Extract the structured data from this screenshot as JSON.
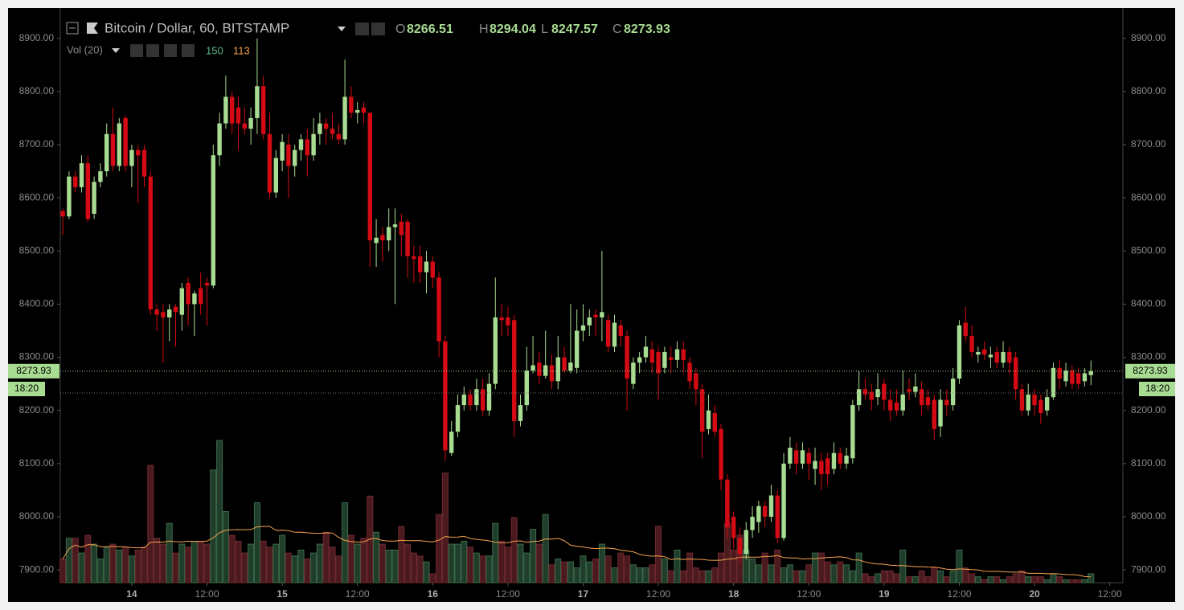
{
  "chart_data": {
    "type": "candlestick",
    "title": "Bitcoin / Dollar, 60, BITSTAMP",
    "ohlc_labels": [
      "O",
      "H",
      "L",
      "C"
    ],
    "volume_title": "Vol (20)",
    "volume_ma": 113,
    "countdown": "18:20",
    "up_color": "#a9dc93",
    "down_color": "#d40a14",
    "ma_color": "#f6a04d",
    "ylim": [
      7876,
      8954
    ],
    "yticks": [
      {
        "value": 7900,
        "label": "7900.00"
      },
      {
        "value": 8000,
        "label": "8000.00"
      },
      {
        "value": 8100,
        "label": "8100.00"
      },
      {
        "value": 8200,
        "label": "8200.00"
      },
      {
        "value": 8300,
        "label": "8300.00"
      },
      {
        "value": 8400,
        "label": "8400.00"
      },
      {
        "value": 8500,
        "label": "8500.00"
      },
      {
        "value": 8600,
        "label": "8600.00"
      },
      {
        "value": 8700,
        "label": "8700.00"
      },
      {
        "value": 8800,
        "label": "8800.00"
      },
      {
        "value": 8900,
        "label": "8900.00"
      }
    ],
    "xlim": [
      -0.4,
      169.1
    ],
    "xticks": [
      {
        "value": 11,
        "label": "14"
      },
      {
        "value": 23,
        "label": "12:00"
      },
      {
        "value": 35,
        "label": "15"
      },
      {
        "value": 47,
        "label": "12:00"
      },
      {
        "value": 59,
        "label": "16"
      },
      {
        "value": 71,
        "label": "12:00"
      },
      {
        "value": 83,
        "label": "17"
      },
      {
        "value": 95,
        "label": "12:00"
      },
      {
        "value": 107,
        "label": "18"
      },
      {
        "value": 119,
        "label": "12:00"
      },
      {
        "value": 131,
        "label": "19"
      },
      {
        "value": 143,
        "label": "12:00"
      },
      {
        "value": 155,
        "label": "20"
      },
      {
        "value": 167,
        "label": "12:00"
      }
    ],
    "ohlc": [
      [
        8575,
        8580,
        8530,
        8565
      ],
      [
        8565,
        8650,
        8560,
        8640
      ],
      [
        8640,
        8650,
        8610,
        8620
      ],
      [
        8620,
        8680,
        8610,
        8665
      ],
      [
        8665,
        8680,
        8555,
        8560
      ],
      [
        8570,
        8640,
        8560,
        8630
      ],
      [
        8630,
        8665,
        8620,
        8650
      ],
      [
        8650,
        8740,
        8640,
        8720
      ],
      [
        8720,
        8770,
        8650,
        8660
      ],
      [
        8660,
        8750,
        8650,
        8740
      ],
      [
        8750,
        8755,
        8650,
        8660
      ],
      [
        8660,
        8700,
        8620,
        8690
      ],
      [
        8690,
        8700,
        8590,
        8680
      ],
      [
        8690,
        8700,
        8620,
        8640
      ],
      [
        8640,
        8650,
        8380,
        8390
      ],
      [
        8390,
        8400,
        8350,
        8380
      ],
      [
        8385,
        8400,
        8290,
        8375
      ],
      [
        8375,
        8400,
        8330,
        8390
      ],
      [
        8395,
        8400,
        8320,
        8385
      ],
      [
        8380,
        8440,
        8350,
        8430
      ],
      [
        8440,
        8450,
        8360,
        8400
      ],
      [
        8400,
        8425,
        8340,
        8420
      ],
      [
        8430,
        8460,
        8380,
        8400
      ],
      [
        8440,
        8450,
        8360,
        8435
      ],
      [
        8435,
        8700,
        8430,
        8680
      ],
      [
        8680,
        8760,
        8660,
        8740
      ],
      [
        8740,
        8830,
        8730,
        8790
      ],
      [
        8790,
        8800,
        8720,
        8740
      ],
      [
        8770,
        8790,
        8690,
        8740
      ],
      [
        8740,
        8770,
        8720,
        8730
      ],
      [
        8730,
        8770,
        8700,
        8750
      ],
      [
        8750,
        8900,
        8720,
        8810
      ],
      [
        8810,
        8830,
        8710,
        8720
      ],
      [
        8720,
        8760,
        8600,
        8610
      ],
      [
        8610,
        8690,
        8600,
        8675
      ],
      [
        8670,
        8720,
        8650,
        8705
      ],
      [
        8700,
        8720,
        8600,
        8660
      ],
      [
        8660,
        8700,
        8640,
        8690
      ],
      [
        8690,
        8720,
        8670,
        8710
      ],
      [
        8710,
        8730,
        8640,
        8680
      ],
      [
        8680,
        8750,
        8670,
        8720
      ],
      [
        8720,
        8760,
        8700,
        8740
      ],
      [
        8740,
        8750,
        8700,
        8730
      ],
      [
        8730,
        8760,
        8710,
        8720
      ],
      [
        8720,
        8740,
        8700,
        8710
      ],
      [
        8710,
        8860,
        8700,
        8790
      ],
      [
        8790,
        8810,
        8750,
        8760
      ],
      [
        8760,
        8780,
        8740,
        8765
      ],
      [
        8770,
        8780,
        8740,
        8760
      ],
      [
        8760,
        8760,
        8470,
        8520
      ],
      [
        8515,
        8560,
        8470,
        8525
      ],
      [
        8530,
        8545,
        8480,
        8520
      ],
      [
        8520,
        8580,
        8500,
        8545
      ],
      [
        8545,
        8580,
        8400,
        8550
      ],
      [
        8555,
        8570,
        8490,
        8530
      ],
      [
        8555,
        8560,
        8450,
        8490
      ],
      [
        8490,
        8510,
        8440,
        8485
      ],
      [
        8490,
        8510,
        8440,
        8460
      ],
      [
        8460,
        8500,
        8420,
        8480
      ],
      [
        8480,
        8490,
        8430,
        8450
      ],
      [
        8450,
        8460,
        8300,
        8330
      ],
      [
        8330,
        8340,
        8105,
        8125
      ],
      [
        8120,
        8180,
        8115,
        8160
      ],
      [
        8160,
        8230,
        8150,
        8210
      ],
      [
        8210,
        8245,
        8200,
        8230
      ],
      [
        8230,
        8240,
        8200,
        8210
      ],
      [
        8210,
        8260,
        8200,
        8240
      ],
      [
        8240,
        8260,
        8190,
        8200
      ],
      [
        8200,
        8270,
        8190,
        8250
      ],
      [
        8250,
        8450,
        8240,
        8375
      ],
      [
        8375,
        8400,
        8340,
        8370
      ],
      [
        8375,
        8395,
        8340,
        8360
      ],
      [
        8370,
        8380,
        8150,
        8180
      ],
      [
        8180,
        8230,
        8170,
        8210
      ],
      [
        8210,
        8320,
        8200,
        8275
      ],
      [
        8275,
        8340,
        8270,
        8285
      ],
      [
        8290,
        8310,
        8250,
        8265
      ],
      [
        8265,
        8350,
        8260,
        8285
      ],
      [
        8285,
        8305,
        8240,
        8255
      ],
      [
        8255,
        8340,
        8240,
        8300
      ],
      [
        8300,
        8320,
        8270,
        8275
      ],
      [
        8275,
        8400,
        8270,
        8290
      ],
      [
        8280,
        8390,
        8270,
        8350
      ],
      [
        8350,
        8400,
        8330,
        8360
      ],
      [
        8360,
        8390,
        8340,
        8375
      ],
      [
        8380,
        8390,
        8340,
        8375
      ],
      [
        8375,
        8500,
        8330,
        8385
      ],
      [
        8370,
        8380,
        8310,
        8320
      ],
      [
        8320,
        8380,
        8310,
        8365
      ],
      [
        8360,
        8370,
        8320,
        8340
      ],
      [
        8340,
        8350,
        8200,
        8260
      ],
      [
        8250,
        8300,
        8240,
        8290
      ],
      [
        8290,
        8310,
        8270,
        8300
      ],
      [
        8300,
        8340,
        8290,
        8320
      ],
      [
        8315,
        8330,
        8270,
        8290
      ],
      [
        8310,
        8320,
        8220,
        8270
      ],
      [
        8280,
        8320,
        8270,
        8310
      ],
      [
        8300,
        8320,
        8270,
        8295
      ],
      [
        8295,
        8330,
        8280,
        8315
      ],
      [
        8315,
        8330,
        8270,
        8295
      ],
      [
        8290,
        8300,
        8240,
        8255
      ],
      [
        8270,
        8280,
        8210,
        8240
      ],
      [
        8240,
        8250,
        8110,
        8160
      ],
      [
        8165,
        8230,
        8155,
        8200
      ],
      [
        8195,
        8210,
        8150,
        8160
      ],
      [
        8165,
        8175,
        8050,
        8070
      ],
      [
        8070,
        8080,
        7960,
        7980
      ],
      [
        8000,
        8010,
        7940,
        7960
      ],
      [
        7960,
        7980,
        7910,
        7930
      ],
      [
        7930,
        7990,
        7920,
        7975
      ],
      [
        7975,
        8020,
        7960,
        8000
      ],
      [
        7990,
        8030,
        7970,
        8020
      ],
      [
        8020,
        8030,
        7980,
        8000
      ],
      [
        8000,
        8060,
        7990,
        8040
      ],
      [
        8040,
        8050,
        7950,
        7960
      ],
      [
        7960,
        8120,
        7955,
        8100
      ],
      [
        8100,
        8150,
        8090,
        8130
      ],
      [
        8125,
        8140,
        8080,
        8100
      ],
      [
        8100,
        8140,
        8090,
        8125
      ],
      [
        8120,
        8130,
        8070,
        8100
      ],
      [
        8090,
        8130,
        8060,
        8105
      ],
      [
        8105,
        8120,
        8050,
        8080
      ],
      [
        8110,
        8120,
        8060,
        8080
      ],
      [
        8090,
        8140,
        8080,
        8120
      ],
      [
        8120,
        8130,
        8090,
        8100
      ],
      [
        8100,
        8130,
        8090,
        8115
      ],
      [
        8110,
        8220,
        8100,
        8210
      ],
      [
        8210,
        8275,
        8200,
        8240
      ],
      [
        8240,
        8260,
        8220,
        8230
      ],
      [
        8235,
        8250,
        8200,
        8220
      ],
      [
        8225,
        8270,
        8210,
        8240
      ],
      [
        8250,
        8260,
        8200,
        8220
      ],
      [
        8220,
        8240,
        8180,
        8200
      ],
      [
        8215,
        8240,
        8190,
        8200
      ],
      [
        8200,
        8275,
        8190,
        8230
      ],
      [
        8240,
        8260,
        8220,
        8235
      ],
      [
        8235,
        8270,
        8225,
        8245
      ],
      [
        8240,
        8255,
        8190,
        8210
      ],
      [
        8225,
        8240,
        8200,
        8210
      ],
      [
        8220,
        8230,
        8145,
        8165
      ],
      [
        8170,
        8240,
        8150,
        8220
      ],
      [
        8220,
        8240,
        8190,
        8210
      ],
      [
        8210,
        8280,
        8200,
        8260
      ],
      [
        8260,
        8370,
        8250,
        8360
      ],
      [
        8365,
        8395,
        8330,
        8340
      ],
      [
        8340,
        8360,
        8300,
        8310
      ],
      [
        8305,
        8320,
        8290,
        8310
      ],
      [
        8315,
        8330,
        8295,
        8305
      ],
      [
        8300,
        8320,
        8280,
        8305
      ],
      [
        8310,
        8320,
        8280,
        8290
      ],
      [
        8290,
        8330,
        8280,
        8310
      ],
      [
        8310,
        8320,
        8270,
        8290
      ],
      [
        8300,
        8310,
        8220,
        8240
      ],
      [
        8240,
        8250,
        8190,
        8200
      ],
      [
        8200,
        8250,
        8190,
        8230
      ],
      [
        8230,
        8240,
        8190,
        8210
      ],
      [
        8220,
        8230,
        8175,
        8195
      ],
      [
        8200,
        8240,
        8190,
        8225
      ],
      [
        8225,
        8290,
        8220,
        8280
      ],
      [
        8280,
        8295,
        8240,
        8260
      ],
      [
        8255,
        8290,
        8245,
        8275
      ],
      [
        8275,
        8285,
        8240,
        8250
      ],
      [
        8270,
        8280,
        8240,
        8250
      ],
      [
        8255,
        8280,
        8245,
        8270
      ],
      [
        8266.51,
        8294.04,
        8247.57,
        8273.93
      ]
    ],
    "volume": [
      400,
      750,
      750,
      500,
      800,
      650,
      400,
      600,
      650,
      550,
      600,
      450,
      550,
      600,
      1980,
      750,
      650,
      1000,
      500,
      650,
      600,
      700,
      700,
      650,
      1900,
      2400,
      1200,
      800,
      700,
      500,
      650,
      1350,
      700,
      600,
      650,
      800,
      500,
      450,
      550,
      400,
      500,
      650,
      850,
      600,
      450,
      1350,
      800,
      650,
      750,
      1460,
      850,
      650,
      550,
      550,
      950,
      650,
      500,
      450,
      350,
      150,
      1150,
      1850,
      650,
      650,
      700,
      600,
      500,
      450,
      450,
      1000,
      700,
      600,
      1100,
      650,
      500,
      900,
      650,
      1150,
      300,
      400,
      350,
      350,
      250,
      450,
      350,
      400,
      650,
      450,
      250,
      500,
      450,
      300,
      250,
      250,
      300,
      950,
      400,
      200,
      550,
      200,
      500,
      250,
      200,
      200,
      250,
      500,
      1000,
      550,
      800,
      550,
      400,
      300,
      500,
      300,
      550,
      250,
      300,
      200,
      200,
      300,
      500,
      500,
      350,
      300,
      350,
      300,
      200,
      500,
      150,
      100,
      150,
      200,
      200,
      150,
      550,
      100,
      100,
      200,
      100,
      250,
      200,
      100,
      200,
      550,
      250,
      150,
      100,
      50,
      100,
      100,
      50,
      100,
      150,
      200,
      100,
      100,
      100,
      50,
      150,
      100,
      50,
      50,
      50,
      50,
      150
    ]
  }
}
